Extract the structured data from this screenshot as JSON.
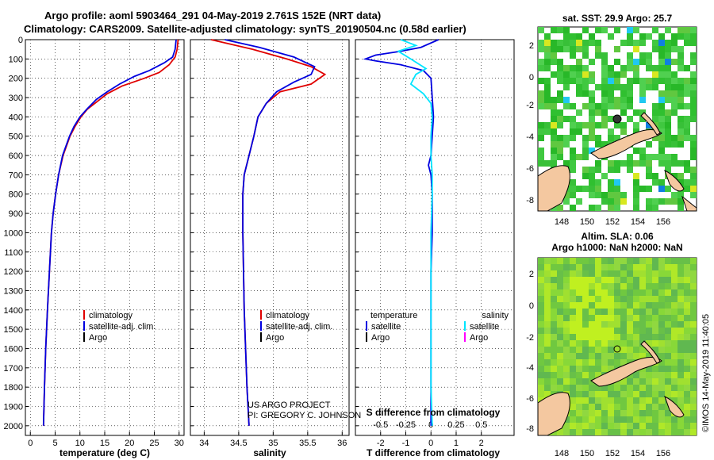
{
  "header": {
    "line1": "Argo profile: aoml 5903464_291 04-May-2019 2.761S 152E (NRT data)",
    "line2": "Climatology: CARS2009. Satellite-adjusted climatology: synTS_20190504.nc (0.58d earlier)"
  },
  "colors": {
    "climatology": "#e00000",
    "satellite": "#0000e0",
    "argo": "#000000",
    "sal_satellite": "#00e5ff",
    "sal_argo": "#ff00ff"
  },
  "legends": {
    "temp": [
      "climatology",
      "satellite-adj. clim.",
      "Argo"
    ],
    "sal": [
      "climatology",
      "satellite-adj. clim.",
      "Argo"
    ],
    "diff_temp_header": "temperature",
    "diff_sal_header": "salinity",
    "diff_temp": [
      "satellite",
      "Argo"
    ],
    "diff_sal": [
      "satellite",
      "Argo"
    ]
  },
  "credits": {
    "line1": "US ARGO PROJECT",
    "line2": "PI: GREGORY C. JOHNSON"
  },
  "maps": {
    "sst_title": "sat. SST: 29.9 Argo: 25.7",
    "sla_title1": "Altim. SLA: 0.06",
    "sla_title2": "Argo h1000: NaN h2000: NaN",
    "lon_ticks": [
      "148",
      "150",
      "152",
      "154",
      "156"
    ],
    "lat_ticks": [
      "2",
      "0",
      "-2",
      "-4",
      "-6",
      "-8"
    ],
    "stamp": "©IMOS 14-May-2019 11:40:05"
  },
  "chart_data": [
    {
      "type": "line",
      "title": "temperature profile",
      "xlabel": "temperature (deg C)",
      "ylabel": "",
      "xlim": [
        -1,
        31
      ],
      "ylim": [
        2050,
        0
      ],
      "x_ticks": [
        "0",
        "5",
        "10",
        "15",
        "20",
        "25",
        "30"
      ],
      "y_ticks": [
        "0",
        "100",
        "200",
        "300",
        "400",
        "500",
        "600",
        "700",
        "800",
        "900",
        "1000",
        "1100",
        "1200",
        "1300",
        "1400",
        "1500",
        "1600",
        "1700",
        "1800",
        "1900",
        "2000"
      ],
      "series": [
        {
          "name": "climatology",
          "points": [
            [
              29.8,
              0
            ],
            [
              29.6,
              50
            ],
            [
              29.2,
              90
            ],
            [
              28,
              130
            ],
            [
              26,
              170
            ],
            [
              23,
              200
            ],
            [
              18.5,
              240
            ],
            [
              15.5,
              280
            ],
            [
              13.5,
              320
            ],
            [
              11.5,
              360
            ],
            [
              10.2,
              400
            ],
            [
              9,
              450
            ],
            [
              8,
              500
            ],
            [
              6.6,
              600
            ],
            [
              5.7,
              700
            ],
            [
              5.1,
              800
            ],
            [
              4.6,
              900
            ],
            [
              4.25,
              1000
            ],
            [
              3.85,
              1200
            ],
            [
              3.45,
              1400
            ],
            [
              3.1,
              1600
            ],
            [
              2.85,
              1800
            ],
            [
              2.65,
              2000
            ]
          ]
        },
        {
          "name": "satellite-adj. clim.",
          "points": [
            [
              29.4,
              0
            ],
            [
              29.2,
              50
            ],
            [
              28.7,
              90
            ],
            [
              27,
              120
            ],
            [
              24,
              160
            ],
            [
              21,
              190
            ],
            [
              18,
              230
            ],
            [
              15.5,
              270
            ],
            [
              13.3,
              310
            ],
            [
              11.4,
              360
            ],
            [
              10,
              400
            ],
            [
              8.8,
              450
            ],
            [
              7.9,
              500
            ],
            [
              6.5,
              600
            ],
            [
              5.7,
              700
            ],
            [
              5.1,
              800
            ],
            [
              4.6,
              900
            ],
            [
              4.25,
              1000
            ],
            [
              3.85,
              1200
            ],
            [
              3.45,
              1400
            ],
            [
              3.1,
              1600
            ],
            [
              2.85,
              1800
            ],
            [
              2.65,
              2000
            ]
          ]
        }
      ]
    },
    {
      "type": "line",
      "title": "salinity profile",
      "xlabel": "salinity",
      "ylabel": "",
      "xlim": [
        33.8,
        36.1
      ],
      "ylim": [
        2050,
        0
      ],
      "x_ticks": [
        "34",
        "34.5",
        "35",
        "35.5",
        "36"
      ],
      "series": [
        {
          "name": "climatology",
          "points": [
            [
              34.1,
              0
            ],
            [
              34.7,
              50
            ],
            [
              35.2,
              100
            ],
            [
              35.55,
              140
            ],
            [
              35.75,
              180
            ],
            [
              35.55,
              230
            ],
            [
              35.1,
              270
            ],
            [
              34.9,
              330
            ],
            [
              34.78,
              400
            ],
            [
              34.72,
              500
            ],
            [
              34.65,
              600
            ],
            [
              34.58,
              700
            ],
            [
              34.56,
              800
            ],
            [
              34.56,
              1000
            ],
            [
              34.57,
              1200
            ],
            [
              34.58,
              1400
            ],
            [
              34.6,
              1600
            ],
            [
              34.62,
              1800
            ],
            [
              34.65,
              2000
            ]
          ]
        },
        {
          "name": "satellite-adj. clim.",
          "points": [
            [
              34.3,
              0
            ],
            [
              34.8,
              40
            ],
            [
              35.3,
              90
            ],
            [
              35.6,
              140
            ],
            [
              35.55,
              180
            ],
            [
              35.3,
              220
            ],
            [
              35.05,
              270
            ],
            [
              34.9,
              330
            ],
            [
              34.78,
              400
            ],
            [
              34.72,
              500
            ],
            [
              34.65,
              600
            ],
            [
              34.58,
              700
            ],
            [
              34.56,
              800
            ],
            [
              34.56,
              1000
            ],
            [
              34.57,
              1200
            ],
            [
              34.58,
              1400
            ],
            [
              34.6,
              1600
            ],
            [
              34.62,
              1800
            ],
            [
              34.65,
              2000
            ]
          ]
        }
      ]
    },
    {
      "type": "line",
      "title": "difference from climatology",
      "xlabel": "T difference from climatology",
      "xlabel_top": "S difference from climatology",
      "ylabel": "",
      "xlim": [
        -3,
        3.3
      ],
      "ylim": [
        2050,
        0
      ],
      "x_ticks": [
        "-2",
        "-1",
        "0",
        "1",
        "2"
      ],
      "x_ticks_top": [
        "-0.5",
        "-0.25",
        "0",
        "0.25",
        "0.5"
      ],
      "series": [
        {
          "name": "T satellite",
          "points": [
            [
              0.3,
              0
            ],
            [
              -0.4,
              40
            ],
            [
              -1.2,
              60
            ],
            [
              -2.2,
              80
            ],
            [
              -2.6,
              100
            ],
            [
              -2.2,
              110
            ],
            [
              -1.2,
              130
            ],
            [
              -0.3,
              160
            ],
            [
              0,
              200
            ],
            [
              0.05,
              300
            ],
            [
              0.1,
              400
            ],
            [
              0.05,
              500
            ],
            [
              0,
              600
            ],
            [
              -0.1,
              650
            ],
            [
              0,
              700
            ],
            [
              0.05,
              800
            ],
            [
              0.05,
              1000
            ],
            [
              0,
              1200
            ],
            [
              0,
              1400
            ],
            [
              0,
              1600
            ],
            [
              0,
              1800
            ],
            [
              0,
              2000
            ]
          ]
        },
        {
          "name": "S satellite",
          "points": [
            [
              -1.2,
              0
            ],
            [
              -0.6,
              30
            ],
            [
              -1.3,
              60
            ],
            [
              -0.8,
              100
            ],
            [
              -0.2,
              150
            ],
            [
              -0.6,
              180
            ],
            [
              -0.8,
              230
            ],
            [
              -0.3,
              280
            ],
            [
              0,
              330
            ],
            [
              0.05,
              400
            ],
            [
              0,
              500
            ],
            [
              0,
              600
            ],
            [
              0.05,
              700
            ],
            [
              0.05,
              800
            ],
            [
              0,
              1000
            ],
            [
              0,
              1200
            ],
            [
              0,
              1400
            ],
            [
              0,
              1600
            ],
            [
              0,
              1800
            ],
            [
              0.05,
              2000
            ]
          ]
        }
      ]
    }
  ]
}
